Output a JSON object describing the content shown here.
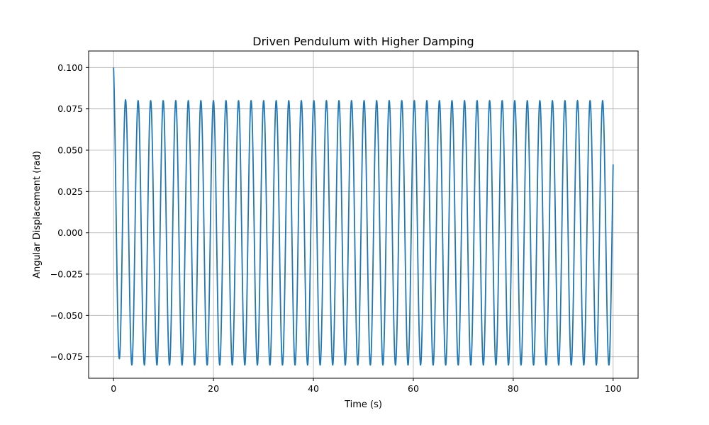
{
  "chart_data": {
    "type": "line",
    "title": "Driven Pendulum with Higher Damping",
    "xlabel": "Time (s)",
    "ylabel": "Angular Displacement (rad)",
    "xlim": [
      -5,
      105
    ],
    "ylim": [
      -0.088,
      0.11
    ],
    "xticks": [
      0,
      20,
      40,
      60,
      80,
      100
    ],
    "xtick_labels": [
      "0",
      "20",
      "40",
      "60",
      "80",
      "100"
    ],
    "yticks": [
      -0.075,
      -0.05,
      -0.025,
      0.0,
      0.025,
      0.05,
      0.075,
      0.1
    ],
    "ytick_labels": [
      "−0.075",
      "−0.050",
      "−0.025",
      "0.000",
      "0.025",
      "0.050",
      "0.075",
      "0.100"
    ],
    "grid": true,
    "series": [
      {
        "color": "#1f77b4",
        "model": {
          "initial_value": 0.1,
          "steady_amplitude": 0.08,
          "angular_frequency": 2.5,
          "phase": 0.3,
          "t_start": 0,
          "t_end": 100,
          "samples": 4001
        }
      }
    ]
  }
}
